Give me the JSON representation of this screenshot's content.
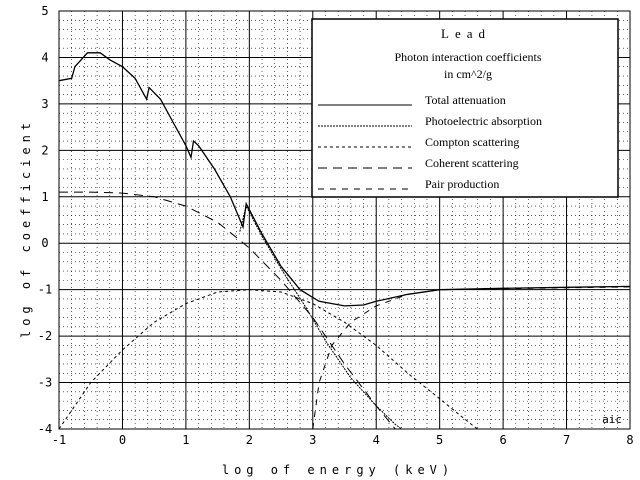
{
  "chart_data": {
    "type": "line",
    "title": "Lead",
    "subtitle": "Photon interaction coefficients",
    "unit_label": "in cm^2/g",
    "xlabel": "log of energy (keV)",
    "ylabel": "log of coefficient",
    "corner_label": "aic",
    "xlim": [
      -1,
      8
    ],
    "ylim": [
      -4,
      5
    ],
    "x_ticks": [
      "-1",
      "0",
      "1",
      "2",
      "3",
      "4",
      "5",
      "6",
      "7",
      "8"
    ],
    "y_ticks": [
      "5",
      "4",
      "3",
      "2",
      "1",
      "0",
      "-1",
      "-2",
      "-3",
      "-4"
    ],
    "grid": true,
    "legend_position": "top-right",
    "series": [
      {
        "name": "Total attenuation",
        "dash": "solid",
        "points": [
          [
            -1,
            3.5
          ],
          [
            -0.8,
            3.55
          ],
          [
            -0.75,
            3.8
          ],
          [
            -0.55,
            4.1
          ],
          [
            -0.35,
            4.1
          ],
          [
            -0.2,
            3.95
          ],
          [
            0,
            3.8
          ],
          [
            0.2,
            3.55
          ],
          [
            0.38,
            3.1
          ],
          [
            0.42,
            3.35
          ],
          [
            0.6,
            3.1
          ],
          [
            0.8,
            2.6
          ],
          [
            1.0,
            2.1
          ],
          [
            1.08,
            1.85
          ],
          [
            1.12,
            2.2
          ],
          [
            1.2,
            2.1
          ],
          [
            1.45,
            1.6
          ],
          [
            1.7,
            1.0
          ],
          [
            1.9,
            0.35
          ],
          [
            1.95,
            0.85
          ],
          [
            2.2,
            0.2
          ],
          [
            2.5,
            -0.5
          ],
          [
            2.8,
            -1.0
          ],
          [
            3.1,
            -1.25
          ],
          [
            3.5,
            -1.35
          ],
          [
            3.8,
            -1.33
          ],
          [
            4.0,
            -1.25
          ],
          [
            4.5,
            -1.1
          ],
          [
            5.0,
            -1.0
          ],
          [
            6.0,
            -0.97
          ],
          [
            7.0,
            -0.95
          ],
          [
            8.0,
            -0.93
          ]
        ]
      },
      {
        "name": "Photoelectric absorption",
        "dash": "dense",
        "points": [
          [
            1.85,
            0.25
          ],
          [
            1.95,
            0.8
          ],
          [
            2.2,
            0.15
          ],
          [
            2.5,
            -0.55
          ],
          [
            2.9,
            -1.4
          ],
          [
            3.2,
            -2.1
          ],
          [
            3.6,
            -2.9
          ],
          [
            4.0,
            -3.5
          ],
          [
            4.3,
            -3.9
          ],
          [
            4.4,
            -4.0
          ]
        ]
      },
      {
        "name": "Compton scattering",
        "dash": "short",
        "points": [
          [
            -1,
            -4.0
          ],
          [
            -0.5,
            -3.0
          ],
          [
            0,
            -2.3
          ],
          [
            0.5,
            -1.7
          ],
          [
            1.0,
            -1.3
          ],
          [
            1.5,
            -1.05
          ],
          [
            2.0,
            -1.0
          ],
          [
            2.5,
            -1.05
          ],
          [
            3.0,
            -1.3
          ],
          [
            3.5,
            -1.7
          ],
          [
            4.0,
            -2.2
          ],
          [
            4.5,
            -2.8
          ],
          [
            5.0,
            -3.35
          ],
          [
            5.5,
            -3.9
          ],
          [
            5.6,
            -4.0
          ]
        ]
      },
      {
        "name": "Coherent scattering",
        "dash": "long",
        "points": [
          [
            -1,
            1.1
          ],
          [
            -0.5,
            1.1
          ],
          [
            0,
            1.08
          ],
          [
            0.5,
            1.0
          ],
          [
            1.0,
            0.8
          ],
          [
            1.5,
            0.45
          ],
          [
            2.0,
            -0.1
          ],
          [
            2.5,
            -0.8
          ],
          [
            3.0,
            -1.6
          ],
          [
            3.5,
            -2.6
          ],
          [
            4.0,
            -3.5
          ],
          [
            4.3,
            -4.0
          ]
        ]
      },
      {
        "name": "Pair production",
        "dash": "medium",
        "points": [
          [
            3.0,
            -4.0
          ],
          [
            3.1,
            -3.0
          ],
          [
            3.3,
            -2.2
          ],
          [
            3.6,
            -1.7
          ],
          [
            4.0,
            -1.35
          ],
          [
            4.5,
            -1.1
          ],
          [
            5.0,
            -1.0
          ],
          [
            6.0,
            -0.98
          ],
          [
            7.0,
            -0.96
          ],
          [
            8.0,
            -0.94
          ]
        ]
      }
    ]
  }
}
